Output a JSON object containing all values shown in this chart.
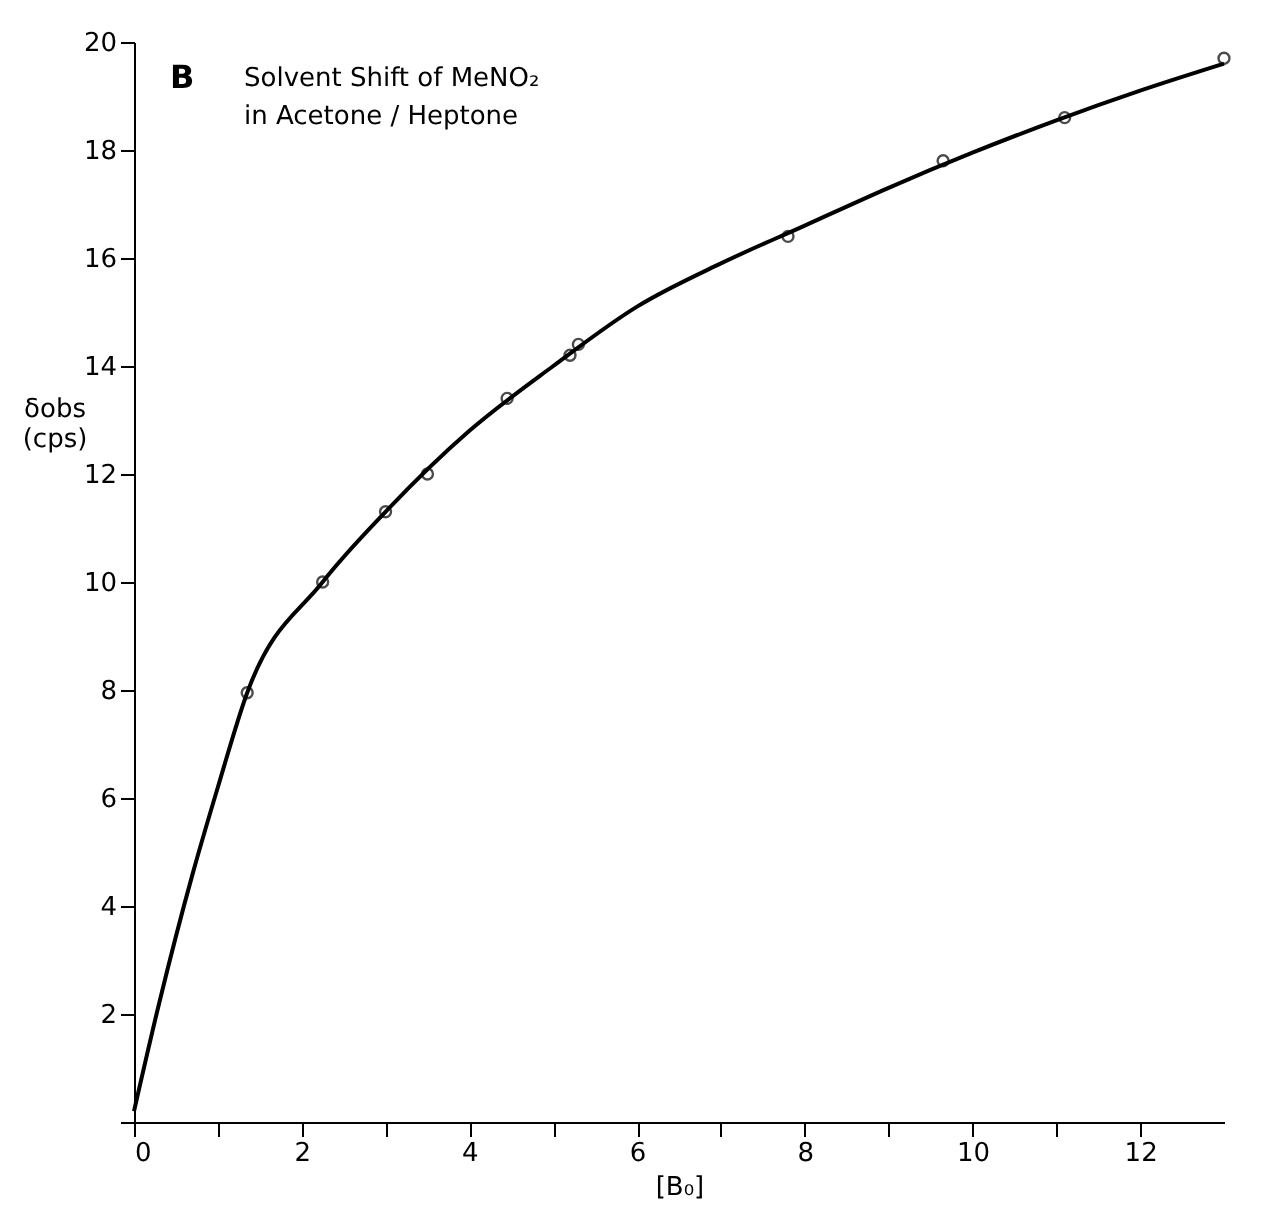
{
  "chart_data": {
    "type": "scatter",
    "title": "Solvent Shift of MeNO₂\nin Acetone / Heptone",
    "annotations": [
      "B"
    ],
    "xlabel": "[B₀]",
    "ylabel": "δobs\n(cps)",
    "grid": false,
    "series": [
      {
        "color": "#000000",
        "marker": "circle",
        "x": [
          1.35,
          2.25,
          3.0,
          3.5,
          4.45,
          5.2,
          5.3,
          7.8,
          9.65,
          11.1,
          13.0
        ],
        "values": [
          7.95,
          10.0,
          11.3,
          12.0,
          13.4,
          14.2,
          14.4,
          16.4,
          17.8,
          18.6,
          19.7
        ]
      },
      {
        "type": "line",
        "color": "#000000",
        "marker": "none",
        "x": [
          0,
          0.3,
          0.7,
          1.0,
          1.35,
          2.25,
          3,
          4,
          5,
          6,
          7,
          8,
          9,
          10,
          11,
          12,
          13
        ],
        "values": [
          0.2,
          2.2,
          4.6,
          6.2,
          7.95,
          10.0,
          11.3,
          12.8,
          14.0,
          15.1,
          15.9,
          16.6,
          17.3,
          17.95,
          18.55,
          19.1,
          19.6
        ]
      }
    ],
    "xlim": [
      0,
      13
    ],
    "xticks": [
      0,
      {
        "value": 1,
        "label": null
      },
      2,
      {
        "value": 3,
        "label": null
      },
      4,
      {
        "value": 5,
        "label": null
      },
      6,
      {
        "value": 7,
        "label": null
      },
      8,
      {
        "value": 9,
        "label": null
      },
      10,
      {
        "value": 11,
        "label": null
      },
      12
    ],
    "ylim": [
      0,
      20
    ],
    "yticks": [
      {
        "value": 0,
        "label": null
      },
      2,
      4,
      6,
      8,
      10,
      12,
      14,
      16,
      18,
      20
    ]
  }
}
